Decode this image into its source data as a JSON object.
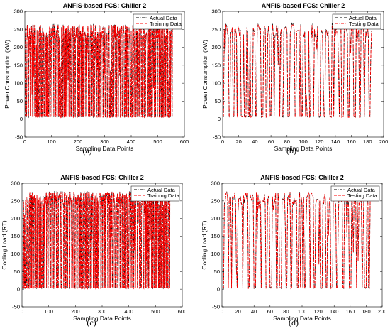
{
  "chart_data": [
    {
      "type": "line",
      "caption": "(a)",
      "title": "ANFIS-based FCS: Chiller 2",
      "xlabel": "Sampling Data Points",
      "ylabel": "Power Consumption (kW)",
      "xlim": [
        0,
        600
      ],
      "ylim": [
        -50,
        300
      ],
      "xticks": [
        "0",
        "100",
        "200",
        "300",
        "400",
        "500",
        "600"
      ],
      "yticks": [
        "-50",
        "0",
        "50",
        "100",
        "150",
        "200",
        "250",
        "300"
      ],
      "legend_position": "top-right",
      "grid": false,
      "n_points": 555,
      "series": [
        {
          "name": "Actual Data",
          "color": "#000000",
          "style": "dash-dot",
          "low": 5,
          "high": 265
        },
        {
          "name": "Training Data",
          "color": "#ff0000",
          "style": "dashed",
          "low": 5,
          "high": 262
        }
      ]
    },
    {
      "type": "line",
      "caption": "(b)",
      "title": "ANFIS-based FCS: Chiller 2",
      "xlabel": "Sampling Data Points",
      "ylabel": "Power Consumption (kW)",
      "xlim": [
        0,
        200
      ],
      "ylim": [
        -50,
        300
      ],
      "xticks": [
        "0",
        "20",
        "40",
        "60",
        "80",
        "100",
        "120",
        "140",
        "160",
        "180",
        "200"
      ],
      "yticks": [
        "-50",
        "0",
        "50",
        "100",
        "150",
        "200",
        "250",
        "300"
      ],
      "legend_position": "top-right",
      "grid": false,
      "n_points": 185,
      "series": [
        {
          "name": "Actual Data",
          "color": "#000000",
          "style": "dashed",
          "low": 5,
          "high": 268
        },
        {
          "name": "Testing Data",
          "color": "#ff0000",
          "style": "dash-dot",
          "low": 5,
          "high": 262
        }
      ]
    },
    {
      "type": "line",
      "caption": "(c)",
      "title": "ANFIS-based FCS: Chiller 2",
      "xlabel": "Sampling Data Points",
      "ylabel": "Cooling Load (RT)",
      "xlim": [
        0,
        600
      ],
      "ylim": [
        -50,
        300
      ],
      "xticks": [
        "0",
        "100",
        "200",
        "300",
        "400",
        "500",
        "600"
      ],
      "yticks": [
        "-50",
        "0",
        "50",
        "100",
        "150",
        "200",
        "250",
        "300"
      ],
      "legend_position": "top-right",
      "grid": false,
      "n_points": 555,
      "series": [
        {
          "name": "Actual Data",
          "color": "#000000",
          "style": "dash-dot",
          "low": 2,
          "high": 278
        },
        {
          "name": "Training Data",
          "color": "#ff0000",
          "style": "dashed",
          "low": 2,
          "high": 275
        }
      ]
    },
    {
      "type": "line",
      "caption": "(d)",
      "title": "ANFIS-based FCS: Chiller 2",
      "xlabel": "Sampling Data Points",
      "ylabel": "Cooling Load (RT)",
      "xlim": [
        0,
        200
      ],
      "ylim": [
        -50,
        300
      ],
      "xticks": [
        "0",
        "20",
        "40",
        "60",
        "80",
        "100",
        "120",
        "140",
        "160",
        "180",
        "200"
      ],
      "yticks": [
        "-50",
        "0",
        "50",
        "100",
        "150",
        "200",
        "250",
        "300"
      ],
      "legend_position": "top-right",
      "grid": false,
      "n_points": 185,
      "series": [
        {
          "name": "Actual Data",
          "color": "#000000",
          "style": "dash-dot",
          "low": 2,
          "high": 278
        },
        {
          "name": "Testing Data",
          "color": "#ff0000",
          "style": "dashed",
          "low": 2,
          "high": 275
        }
      ]
    }
  ]
}
